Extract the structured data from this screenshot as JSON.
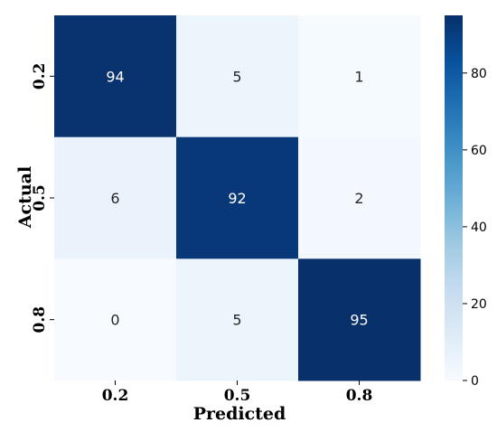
{
  "chart_data": {
    "type": "heatmap",
    "title": "",
    "xlabel": "Predicted",
    "ylabel": "Actual",
    "x_categories": [
      "0.2",
      "0.5",
      "0.8"
    ],
    "y_categories": [
      "0.2",
      "0.5",
      "0.8"
    ],
    "matrix": [
      [
        94,
        5,
        1
      ],
      [
        6,
        92,
        2
      ],
      [
        0,
        5,
        95
      ]
    ],
    "colormap": "Blues",
    "colorbar": {
      "vmin": 0,
      "vmax": 95,
      "ticks": [
        0,
        20,
        40,
        60,
        80
      ],
      "tick_labels": [
        "0",
        "20",
        "40",
        "60",
        "80"
      ]
    },
    "grid": false,
    "legend": "colorbar-right"
  }
}
